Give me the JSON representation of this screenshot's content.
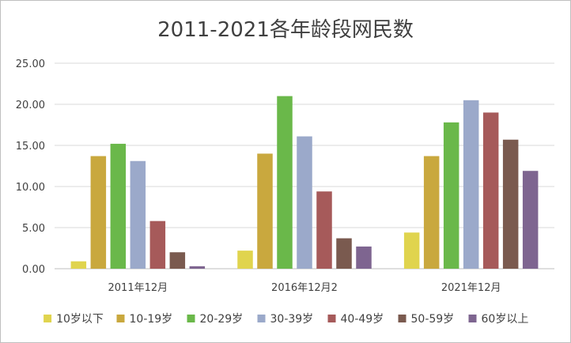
{
  "chart_data": {
    "type": "bar",
    "title": "2011-2021各年龄段网民数",
    "categories": [
      "2011年12月",
      "2016年12月2",
      "2021年12月"
    ],
    "ylim": [
      0,
      25
    ],
    "yticks": [
      "0.00",
      "5.00",
      "10.00",
      "15.00",
      "20.00",
      "25.00"
    ],
    "grid": true,
    "legend_position": "bottom",
    "series": [
      {
        "name": "10岁以下",
        "color": "#e0d44e",
        "values": [
          0.9,
          2.2,
          4.4
        ]
      },
      {
        "name": "10-19岁",
        "color": "#c9a83e",
        "values": [
          13.7,
          14.0,
          13.7
        ]
      },
      {
        "name": "20-29岁",
        "color": "#6ab84a",
        "values": [
          15.2,
          21.0,
          17.8
        ]
      },
      {
        "name": "30-39岁",
        "color": "#9ba9ca",
        "values": [
          13.1,
          16.1,
          20.5
        ]
      },
      {
        "name": "40-49岁",
        "color": "#a65a5a",
        "values": [
          5.8,
          9.4,
          19.0
        ]
      },
      {
        "name": "50-59岁",
        "color": "#7a5a4f",
        "values": [
          2.0,
          3.7,
          15.7
        ]
      },
      {
        "name": "60岁以上",
        "color": "#7e6590",
        "values": [
          0.3,
          2.7,
          11.9
        ]
      }
    ]
  }
}
